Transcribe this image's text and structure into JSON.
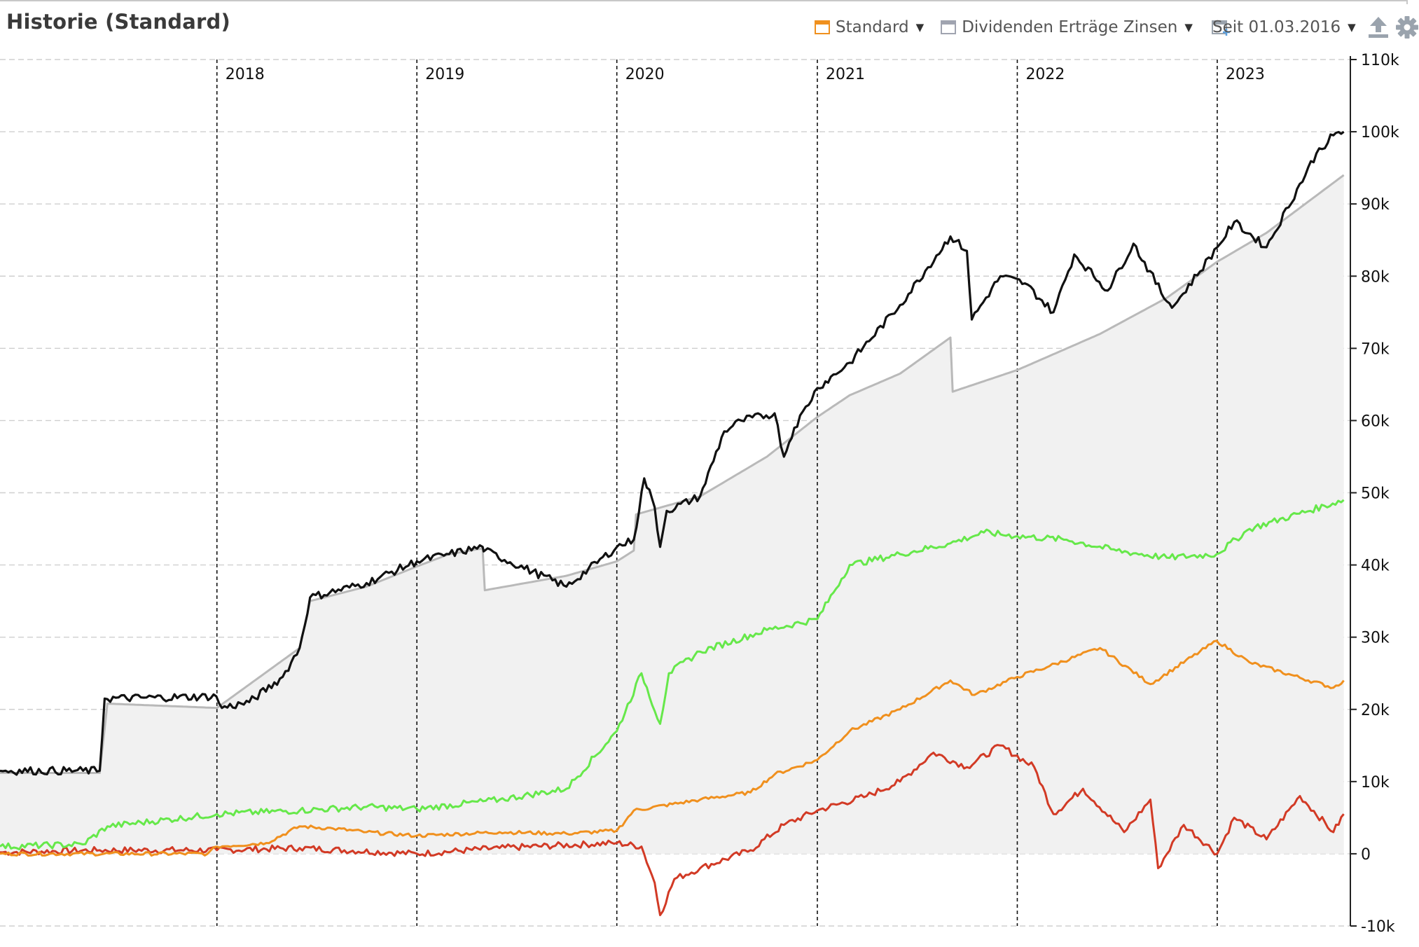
{
  "header": {
    "title": "Historie (Standard)",
    "legend_standard": "Standard",
    "legend_ertraege": "Dividenden Erträge Zinsen",
    "period_label": "Seit 01.03.2016",
    "icons": [
      "calendar-add-icon",
      "export-icon",
      "gear-icon"
    ]
  },
  "colors": {
    "portfolio": "#111111",
    "invested": "#b9b9b9",
    "invested_fill": "#f1f1f1",
    "gains_total": "#66e84a",
    "income": "#f0901e",
    "price_gain": "#d23a25",
    "standard_swatch": "#f0901e",
    "ertraege_swatch": "#a0a4b0"
  },
  "chart_data": {
    "type": "line",
    "x_start": "2016-12-01",
    "x_end": "2023-09-01",
    "year_ticks": [
      "2018",
      "2019",
      "2020",
      "2021",
      "2022",
      "2023"
    ],
    "year_tick_dates": [
      "2018-01-01",
      "2019-01-01",
      "2020-01-01",
      "2021-01-01",
      "2022-01-01",
      "2023-01-01"
    ],
    "ylim": [
      -10000,
      110000
    ],
    "y_ticks": [
      -10000,
      0,
      10000,
      20000,
      30000,
      40000,
      50000,
      60000,
      70000,
      80000,
      90000,
      100000,
      110000
    ],
    "y_tick_labels": [
      "-10k",
      "0",
      "10k",
      "20k",
      "30k",
      "40k",
      "50k",
      "60k",
      "70k",
      "80k",
      "90k",
      "100k",
      "110k"
    ],
    "grid": true,
    "series": [
      {
        "key": "invested",
        "filled": true,
        "x": [
          "2016-12-01",
          "2017-06-01",
          "2017-06-15",
          "2018-01-01",
          "2018-06-01",
          "2018-06-20",
          "2018-10-01",
          "2019-01-01",
          "2019-03-01",
          "2019-05-01",
          "2019-05-05",
          "2019-10-01",
          "2020-01-01",
          "2020-02-01",
          "2020-02-05",
          "2020-06-01",
          "2020-10-01",
          "2021-01-01",
          "2021-03-01",
          "2021-06-01",
          "2021-09-01",
          "2021-09-05",
          "2022-01-01",
          "2022-06-01",
          "2022-10-01",
          "2023-01-01",
          "2023-04-01",
          "2023-08-20"
        ],
        "y": [
          11200,
          11200,
          20800,
          20200,
          28500,
          35000,
          37000,
          39800,
          41500,
          42300,
          36500,
          38500,
          40500,
          42000,
          47000,
          49500,
          55000,
          60500,
          63500,
          66500,
          71500,
          64000,
          67000,
          72000,
          77000,
          82000,
          86000,
          94000
        ]
      },
      {
        "key": "portfolio",
        "x": [
          "2016-12-01",
          "2017-06-01",
          "2017-06-10",
          "2017-12-31",
          "2018-01-10",
          "2018-03-01",
          "2018-05-01",
          "2018-06-01",
          "2018-06-20",
          "2018-10-01",
          "2019-01-01",
          "2019-03-01",
          "2019-05-01",
          "2019-05-05",
          "2019-10-01",
          "2020-01-01",
          "2020-02-01",
          "2020-02-20",
          "2020-03-10",
          "2020-03-20",
          "2020-04-01",
          "2020-06-01",
          "2020-07-15",
          "2020-08-15",
          "2020-10-15",
          "2020-11-01",
          "2020-11-20",
          "2021-01-01",
          "2021-03-01",
          "2021-06-01",
          "2021-09-01",
          "2021-10-01",
          "2021-10-10",
          "2021-12-01",
          "2022-01-15",
          "2022-03-08",
          "2022-04-15",
          "2022-06-15",
          "2022-08-01",
          "2022-10-01",
          "2022-10-15",
          "2023-01-01",
          "2023-02-01",
          "2023-04-01",
          "2023-07-01",
          "2023-08-01",
          "2023-08-20"
        ],
        "y": [
          11500,
          11500,
          21500,
          21800,
          20200,
          21000,
          24500,
          28500,
          35500,
          37500,
          40500,
          41500,
          42500,
          42000,
          37000,
          42500,
          43500,
          52000,
          48000,
          42500,
          47500,
          49500,
          58500,
          60000,
          61000,
          55000,
          59000,
          64500,
          68000,
          76000,
          85500,
          83500,
          74000,
          80000,
          79000,
          75000,
          83000,
          78000,
          84500,
          76500,
          76000,
          84000,
          87500,
          84000,
          97000,
          99500,
          100000
        ]
      },
      {
        "key": "gains_total",
        "x": [
          "2016-12-01",
          "2017-05-01",
          "2017-06-15",
          "2018-01-01",
          "2018-06-01",
          "2018-10-01",
          "2019-01-01",
          "2019-06-01",
          "2019-10-01",
          "2020-01-01",
          "2020-02-15",
          "2020-03-20",
          "2020-04-05",
          "2020-06-01",
          "2020-10-01",
          "2021-01-01",
          "2021-03-01",
          "2021-06-01",
          "2021-09-01",
          "2021-11-01",
          "2022-01-01",
          "2022-04-01",
          "2022-07-01",
          "2022-10-01",
          "2022-12-31",
          "2023-03-01",
          "2023-08-20"
        ],
        "y": [
          1000,
          1300,
          3800,
          5500,
          6000,
          6500,
          6200,
          7500,
          9000,
          17000,
          25000,
          18000,
          25000,
          28000,
          31000,
          32500,
          40000,
          41500,
          43000,
          44500,
          44000,
          43500,
          42000,
          41000,
          41500,
          45000,
          49000
        ]
      },
      {
        "key": "income",
        "x": [
          "2016-12-01",
          "2017-12-15",
          "2018-01-01",
          "2018-04-01",
          "2018-06-01",
          "2018-08-01",
          "2018-10-01",
          "2019-01-01",
          "2019-06-01",
          "2019-10-01",
          "2020-01-01",
          "2020-02-01",
          "2020-06-01",
          "2020-09-01",
          "2020-10-15",
          "2021-01-01",
          "2021-03-01",
          "2021-06-01",
          "2021-09-01",
          "2021-10-15",
          "2022-01-01",
          "2022-03-01",
          "2022-06-01",
          "2022-09-01",
          "2022-12-31",
          "2023-03-01",
          "2023-08-01",
          "2023-08-20"
        ],
        "y": [
          0,
          0,
          1000,
          1500,
          3800,
          3500,
          3000,
          2500,
          3000,
          2800,
          3200,
          6000,
          7500,
          8500,
          11000,
          13000,
          17000,
          20000,
          24000,
          22000,
          24500,
          26000,
          28500,
          23500,
          29500,
          26500,
          23000,
          24000
        ]
      },
      {
        "key": "price_gain",
        "x": [
          "2016-12-01",
          "2017-06-01",
          "2018-01-01",
          "2018-06-01",
          "2019-01-01",
          "2019-06-01",
          "2020-01-01",
          "2020-02-15",
          "2020-03-10",
          "2020-03-20",
          "2020-04-15",
          "2020-06-01",
          "2020-09-01",
          "2020-11-01",
          "2021-01-01",
          "2021-04-01",
          "2021-06-01",
          "2021-08-01",
          "2021-10-01",
          "2021-12-01",
          "2022-02-01",
          "2022-03-08",
          "2022-05-01",
          "2022-07-15",
          "2022-09-01",
          "2022-09-15",
          "2022-11-01",
          "2023-01-01",
          "2023-02-01",
          "2023-04-01",
          "2023-06-01",
          "2023-08-01",
          "2023-08-20"
        ],
        "y": [
          200,
          500,
          500,
          800,
          0,
          800,
          1500,
          1000,
          -4000,
          -8500,
          -3500,
          -2000,
          500,
          4000,
          6000,
          8000,
          10000,
          14000,
          12000,
          15000,
          12000,
          5500,
          9000,
          3000,
          7500,
          -2000,
          4000,
          0,
          5000,
          2000,
          8000,
          3000,
          5500
        ]
      }
    ]
  }
}
